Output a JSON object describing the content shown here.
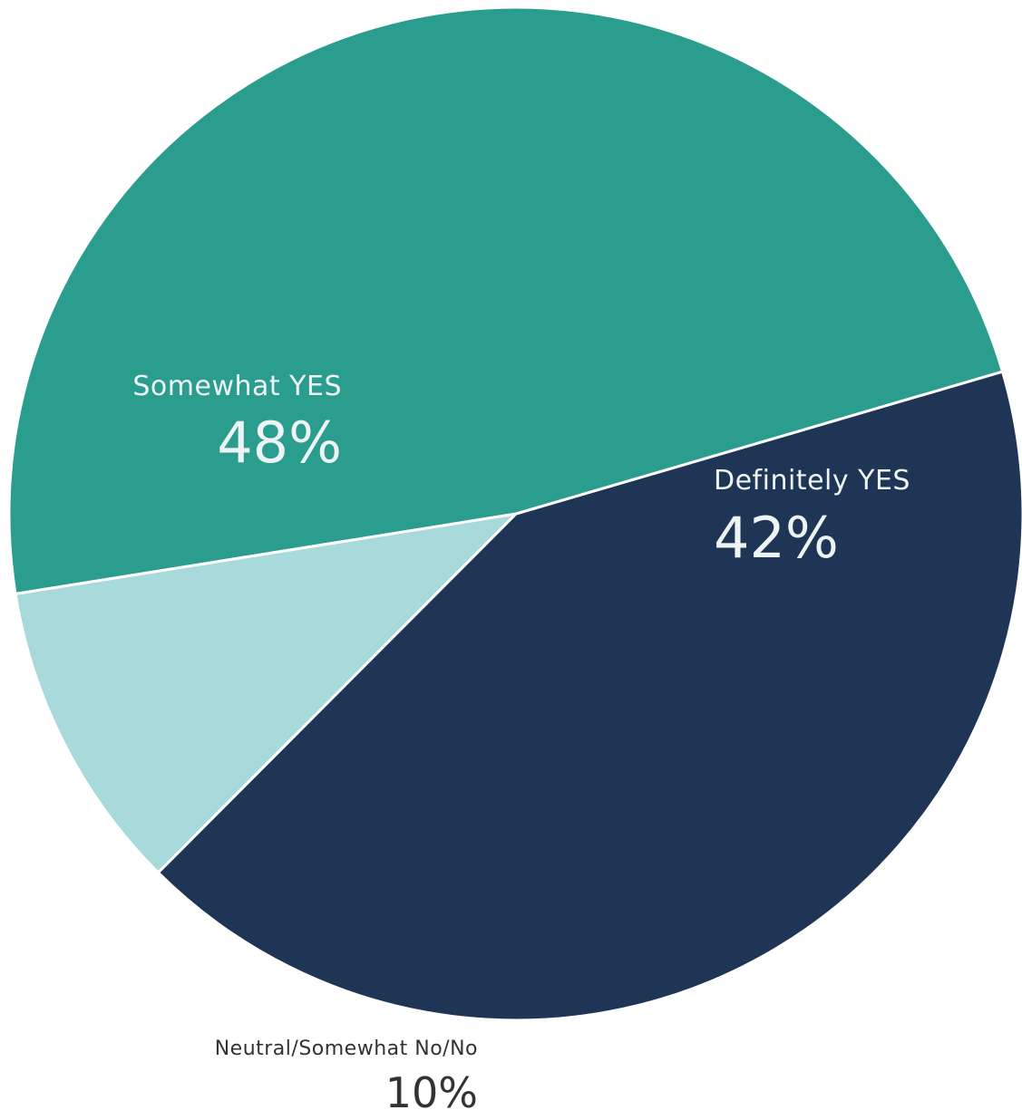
{
  "chart_data": {
    "type": "pie",
    "slices": [
      {
        "label": "Definitely YES",
        "value": 42,
        "value_label": "42%",
        "color": "#1f3556"
      },
      {
        "label": "Neutral/Somewhat No/No",
        "value": 10,
        "value_label": "10%",
        "color": "#a8d9db"
      },
      {
        "label": "Somewhat YES",
        "value": 48,
        "value_label": "48%",
        "color": "#2b9d8e"
      }
    ],
    "label_colors": {
      "on_dark": "#eef3f4",
      "outside": "#333333"
    }
  }
}
